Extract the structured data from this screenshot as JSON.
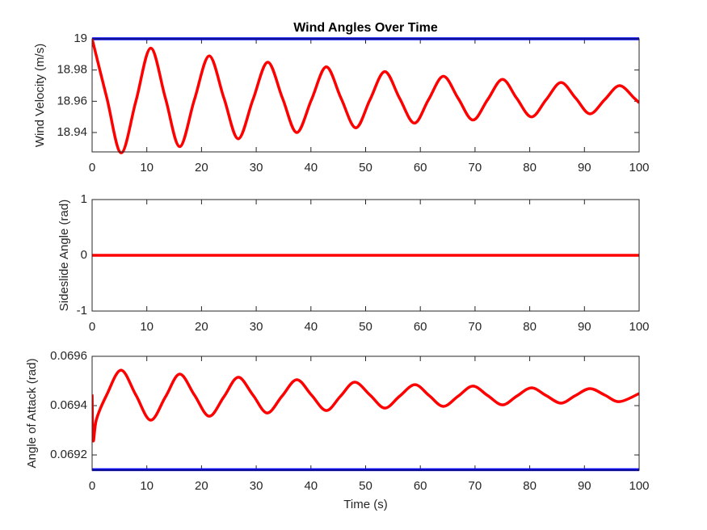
{
  "chart_data": [
    {
      "type": "line",
      "title": "Wind Angles Over Time",
      "y_label": "Wind Velocity (m/s)",
      "xlim": [
        0,
        100
      ],
      "xticks": [
        0,
        10,
        20,
        30,
        40,
        50,
        60,
        70,
        80,
        90,
        100
      ],
      "ylim": [
        18.9276,
        19
      ],
      "yticks": [
        18.94,
        18.96,
        18.98,
        19
      ],
      "series": [
        {
          "color": "#0000ff",
          "x": [
            0,
            100
          ],
          "values": [
            19,
            19
          ]
        },
        {
          "color": "#ff0000",
          "x": [
            0,
            2.7,
            5.3,
            8.0,
            10.7,
            13.4,
            16.0,
            18.7,
            21.4,
            24.1,
            26.7,
            29.4,
            32.1,
            34.8,
            37.4,
            40.1,
            42.8,
            45.5,
            48.2,
            50.8,
            53.5,
            56.2,
            58.9,
            61.5,
            64.2,
            66.9,
            69.6,
            72.3,
            75.0,
            77.6,
            80.3,
            83.0,
            85.7,
            88.4,
            91.0,
            93.7,
            96.4,
            99.1,
            100
          ],
          "values": [
            19.0,
            18.962,
            18.927,
            18.96,
            18.994,
            18.962,
            18.931,
            18.961,
            18.989,
            18.962,
            18.936,
            18.961,
            18.985,
            18.962,
            18.94,
            18.961,
            18.982,
            18.962,
            18.943,
            18.961,
            18.979,
            18.962,
            18.946,
            18.961,
            18.976,
            18.962,
            18.948,
            18.961,
            18.974,
            18.962,
            18.95,
            18.961,
            18.972,
            18.962,
            18.952,
            18.961,
            18.97,
            18.962,
            18.959
          ]
        }
      ]
    },
    {
      "type": "line",
      "y_label": "Sideslide Angle (rad)",
      "xlim": [
        0,
        100
      ],
      "xticks": [
        0,
        10,
        20,
        30,
        40,
        50,
        60,
        70,
        80,
        90,
        100
      ],
      "ylim": [
        -1,
        1
      ],
      "yticks": [
        -1,
        0,
        1
      ],
      "series": [
        {
          "color": "#ff0000",
          "x": [
            0,
            100
          ],
          "values": [
            0,
            0
          ]
        }
      ]
    },
    {
      "type": "line",
      "y_label": "Angle of Attack (rad)",
      "x_label": "Time (s)",
      "xlim": [
        0,
        100
      ],
      "xticks": [
        0,
        10,
        20,
        30,
        40,
        50,
        60,
        70,
        80,
        90,
        100
      ],
      "ylim": [
        0.069138,
        0.0696
      ],
      "yticks": [
        0.0692,
        0.0694,
        0.0696
      ],
      "series": [
        {
          "color": "#0000ff",
          "x": [
            0,
            100
          ],
          "values": [
            0.06914,
            0.06914
          ]
        },
        {
          "color": "#ff0000",
          "x": [
            0,
            0.2,
            0.8,
            2.7,
            5.3,
            8.0,
            10.7,
            13.4,
            16.0,
            18.7,
            21.4,
            24.1,
            26.7,
            29.4,
            32.0,
            34.7,
            37.4,
            40.1,
            42.8,
            45.4,
            48.0,
            50.8,
            53.5,
            56.2,
            59.0,
            61.6,
            64.2,
            66.9,
            69.6,
            72.3,
            75.0,
            77.6,
            80.3,
            83.0,
            85.7,
            88.3,
            91.0,
            93.7,
            96.4,
            100
          ],
          "values": [
            0.069445,
            0.069259,
            0.069345,
            0.069445,
            0.069544,
            0.069443,
            0.069341,
            0.069435,
            0.069528,
            0.069443,
            0.069357,
            0.069436,
            0.069515,
            0.069443,
            0.06937,
            0.069438,
            0.069505,
            0.069443,
            0.06938,
            0.069438,
            0.069495,
            0.069443,
            0.06939,
            0.069438,
            0.069485,
            0.069441,
            0.069397,
            0.069438,
            0.069479,
            0.069441,
            0.069403,
            0.069438,
            0.069472,
            0.069441,
            0.06941,
            0.06944,
            0.069469,
            0.069443,
            0.069416,
            0.069449
          ]
        }
      ]
    }
  ]
}
